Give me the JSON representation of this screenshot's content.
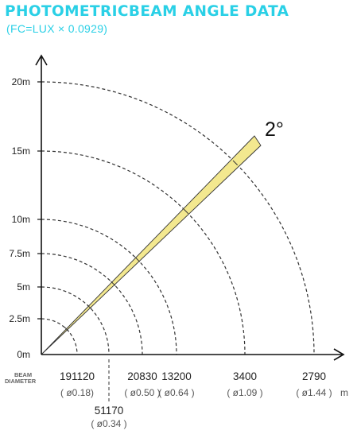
{
  "title": "PHOTOMETRICBEAM ANGLE DATA",
  "subtitle": "(FC=LUX × 0.0929)",
  "colors": {
    "title": "#2ad0e6",
    "subtitle": "#2ad0e6",
    "beam": "#f3e88f",
    "beam_edge": "#333333",
    "rings": "#333333"
  },
  "beam_angle_label": "2°",
  "beam_label_line1": "BEAM",
  "beam_label_line2": "DIAMETER",
  "unit_label": "m",
  "distance_ticks": [
    {
      "label": "0m",
      "value": 0
    },
    {
      "label": "2.5m",
      "value": 2.5
    },
    {
      "label": "5m",
      "value": 5
    },
    {
      "label": "7.5m",
      "value": 7.5
    },
    {
      "label": "10m",
      "value": 10
    },
    {
      "label": "15m",
      "value": 15
    },
    {
      "label": "20m",
      "value": 20
    }
  ],
  "rings": [
    {
      "distance": 2.5,
      "lux": "191120",
      "diameter": "( ø0.18)",
      "row": "upper"
    },
    {
      "distance": 5,
      "lux": "51170",
      "diameter": "( ø0.34 )",
      "row": "lower"
    },
    {
      "distance": 7.5,
      "lux": "20830",
      "diameter": "( ø0.50 )",
      "row": "upper"
    },
    {
      "distance": 10,
      "lux": "13200",
      "diameter": "( ø0.64 )",
      "row": "upper"
    },
    {
      "distance": 15,
      "lux": "3400",
      "diameter": "( ø1.09 )",
      "row": "upper"
    },
    {
      "distance": 20,
      "lux": "2790",
      "diameter": "( ø1.44 )",
      "row": "upper"
    }
  ]
}
